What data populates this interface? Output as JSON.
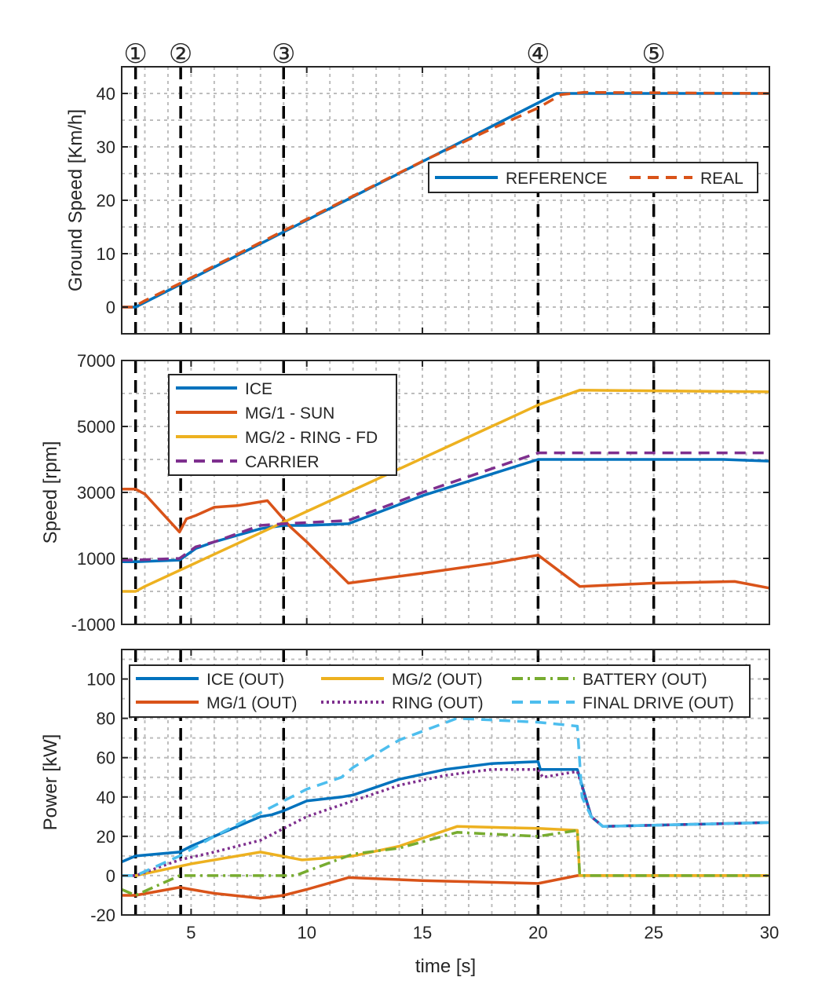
{
  "markers": [
    {
      "label": "①",
      "t": 2.6
    },
    {
      "label": "②",
      "t": 4.55
    },
    {
      "label": "③",
      "t": 9.0
    },
    {
      "label": "④",
      "t": 20.0
    },
    {
      "label": "⑤",
      "t": 25.0
    }
  ],
  "colors": {
    "blue": "#0072BD",
    "orange": "#D95319",
    "yellow": "#EDB120",
    "purple": "#7E2F8E",
    "green": "#77AC30",
    "cyan": "#4DBEEE"
  },
  "chart_data": [
    {
      "type": "line",
      "title": "",
      "xlabel": "",
      "ylabel": "Ground Speed [Km/h]",
      "xlim": [
        2,
        30
      ],
      "ylim": [
        -5,
        45
      ],
      "xticks": [
        5,
        10,
        15,
        20,
        25,
        30
      ],
      "xtick_labels": false,
      "yticks": [
        0,
        10,
        20,
        30,
        40
      ],
      "grid": true,
      "legend_position": "center-right",
      "series": [
        {
          "name": "REFERENCE",
          "color": "#0072BD",
          "style": "solid",
          "x": [
            2,
            2.6,
            20.8,
            30
          ],
          "y": [
            0,
            0,
            40,
            40
          ]
        },
        {
          "name": "REAL",
          "color": "#D95319",
          "style": "dashed",
          "x": [
            2,
            2.5,
            3,
            4.55,
            9,
            15,
            18,
            20,
            21,
            22,
            30
          ],
          "y": [
            0,
            0,
            1.2,
            4.5,
            14.3,
            27.3,
            33.4,
            37.3,
            39.8,
            40.2,
            40
          ]
        }
      ]
    },
    {
      "type": "line",
      "title": "",
      "xlabel": "",
      "ylabel": "Speed [rpm]",
      "xlim": [
        2,
        30
      ],
      "ylim": [
        -1000,
        7000
      ],
      "xticks": [
        5,
        10,
        15,
        20,
        25,
        30
      ],
      "xtick_labels": false,
      "yticks": [
        -1000,
        1000,
        3000,
        5000,
        7000
      ],
      "grid": true,
      "legend_position": "top-left",
      "series": [
        {
          "name": "ICE",
          "color": "#0072BD",
          "style": "solid",
          "x": [
            2,
            2.6,
            4.5,
            5.2,
            6,
            8,
            9,
            10,
            11.8,
            15,
            20,
            21,
            28,
            30
          ],
          "y": [
            900,
            900,
            950,
            1300,
            1500,
            1900,
            2000,
            2000,
            2050,
            2900,
            4000,
            4000,
            4000,
            3950
          ]
        },
        {
          "name": "MG/1 - SUN",
          "color": "#D95319",
          "style": "solid",
          "x": [
            2,
            2.6,
            3,
            4.5,
            4.8,
            5.2,
            6,
            7,
            8.3,
            9.3,
            10,
            11.8,
            15,
            18,
            20,
            21.8,
            25,
            28.5,
            30
          ],
          "y": [
            3100,
            3100,
            2950,
            1800,
            2200,
            2300,
            2550,
            2600,
            2750,
            1950,
            1500,
            250,
            550,
            850,
            1100,
            150,
            250,
            300,
            100
          ]
        },
        {
          "name": "MG/2 - RING - FD",
          "color": "#EDB120",
          "style": "solid",
          "x": [
            2,
            2.6,
            3,
            9,
            20,
            21.8,
            30
          ],
          "y": [
            0,
            0,
            150,
            2100,
            5650,
            6100,
            6050
          ]
        },
        {
          "name": "CARRIER",
          "color": "#7E2F8E",
          "style": "dashed",
          "x": [
            2,
            2.6,
            4.5,
            5.2,
            6,
            8,
            9,
            11.8,
            15,
            20,
            21,
            30
          ],
          "y": [
            950,
            950,
            1000,
            1350,
            1500,
            2000,
            2050,
            2150,
            3000,
            4200,
            4200,
            4200
          ]
        }
      ]
    },
    {
      "type": "line",
      "title": "",
      "xlabel": "time [s]",
      "ylabel": "Power [kW]",
      "xlim": [
        2,
        30
      ],
      "ylim": [
        -20,
        115
      ],
      "xticks": [
        5,
        10,
        15,
        20,
        25,
        30
      ],
      "xtick_labels": true,
      "yticks": [
        -20,
        0,
        20,
        40,
        60,
        80,
        100
      ],
      "grid": true,
      "legend_position": "top",
      "series": [
        {
          "name": "ICE (OUT)",
          "color": "#0072BD",
          "style": "solid",
          "x": [
            2,
            2.6,
            4.5,
            5,
            6,
            7,
            8,
            8.5,
            9,
            10,
            11.5,
            12,
            14,
            16,
            18,
            20,
            20.1,
            21.7,
            22.3,
            22.8,
            30
          ],
          "y": [
            7,
            10,
            12,
            15,
            20,
            25,
            30,
            31,
            33,
            38,
            40,
            41,
            49,
            54,
            57,
            58,
            54,
            54,
            30,
            25,
            27
          ]
        },
        {
          "name": "MG/1 (OUT)",
          "color": "#D95319",
          "style": "solid",
          "x": [
            2,
            2.6,
            4.5,
            6,
            8,
            9,
            10,
            11.8,
            15,
            20,
            21.7,
            30
          ],
          "y": [
            -10,
            -10,
            -6,
            -9,
            -11.5,
            -10,
            -7,
            -1,
            -2.5,
            -4,
            0,
            0
          ]
        },
        {
          "name": "MG/2 (OUT)",
          "color": "#EDB120",
          "style": "solid",
          "x": [
            2,
            2.6,
            5,
            8,
            9.8,
            12,
            14,
            16.5,
            20,
            21.7,
            21.8,
            30
          ],
          "y": [
            0,
            0,
            6,
            12,
            8,
            10,
            15,
            25,
            24,
            23,
            0,
            0
          ]
        },
        {
          "name": "RING (OUT)",
          "color": "#7E2F8E",
          "style": "dotted",
          "x": [
            2,
            2.6,
            4.5,
            6,
            8,
            10,
            12,
            14,
            16,
            18,
            20,
            20.2,
            21.7,
            22.3,
            22.8,
            30
          ],
          "y": [
            0,
            0,
            8,
            12,
            18,
            30,
            38,
            46,
            51,
            54,
            54,
            50,
            53,
            30,
            25,
            27
          ]
        },
        {
          "name": "BATTERY (OUT)",
          "color": "#77AC30",
          "style": "dashdot",
          "x": [
            2,
            2.6,
            4.5,
            9.5,
            12,
            14,
            16.5,
            20,
            21.7,
            21.8,
            30
          ],
          "y": [
            -7,
            -10,
            0,
            0,
            11,
            14,
            22,
            20,
            23,
            0,
            0
          ]
        },
        {
          "name": "FINAL DRIVE (OUT)",
          "color": "#4DBEEE",
          "style": "dashed",
          "x": [
            2,
            2.6,
            4.5,
            6,
            8,
            9,
            10,
            11.5,
            12,
            14,
            16.5,
            20,
            21.7,
            21.9,
            22.3,
            22.8,
            30
          ],
          "y": [
            0,
            0,
            10,
            20,
            32,
            38,
            44,
            50,
            55,
            69,
            80,
            78,
            76,
            40,
            30,
            25,
            27
          ]
        }
      ]
    }
  ]
}
